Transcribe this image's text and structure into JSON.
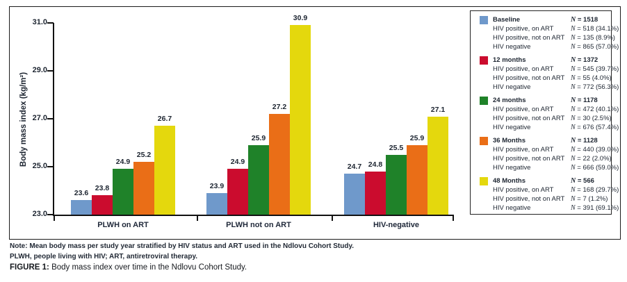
{
  "figure": {
    "note_line1": "Note: Mean body mass per study year stratified by HIV status and ART used in the Ndlovu Cohort Study.",
    "note_line2": "PLWH, people living with HIV; ART, antiretroviral therapy.",
    "caption_label": "FIGURE 1:",
    "caption_text": " Body mass index over time in the Ndlovu Cohort Study."
  },
  "chart_data": {
    "type": "bar",
    "title": "",
    "ylabel": "Body mass index (kg/m²)",
    "xlabel": "",
    "ylim": [
      23.0,
      31.0
    ],
    "ytick_labels": [
      "23.0",
      "25.0",
      "27.0",
      "29.0",
      "31.0"
    ],
    "grid": false,
    "legend_position": "right",
    "categories": [
      "PLWH on ART",
      "PLWH not on ART",
      "HIV-negative"
    ],
    "series": [
      {
        "name": "Baseline",
        "color": "#6f99cb",
        "values": [
          23.6,
          23.9,
          24.7
        ]
      },
      {
        "name": "12 months",
        "color": "#cb0c2e",
        "values": [
          23.8,
          24.9,
          24.8
        ]
      },
      {
        "name": "24 months",
        "color": "#1f8229",
        "values": [
          24.9,
          25.9,
          25.5
        ]
      },
      {
        "name": "36 Months",
        "color": "#ea6e17",
        "values": [
          25.2,
          27.2,
          25.9
        ]
      },
      {
        "name": "48 Months",
        "color": "#e4d80d",
        "values": [
          26.7,
          30.9,
          27.1
        ]
      }
    ]
  },
  "legend": {
    "groups": [
      {
        "name": "Baseline",
        "color": "#6f99cb",
        "n": "N = 1518",
        "rows": [
          {
            "label": "HIV positive, on ART",
            "n": "N = 518 (34.1%)"
          },
          {
            "label": "HIV positive, not on ART",
            "n": "N = 135 (8.9%)"
          },
          {
            "label": "HIV negative",
            "n": "N = 865 (57.0%)"
          }
        ]
      },
      {
        "name": "12 months",
        "color": "#cb0c2e",
        "n": "N = 1372",
        "rows": [
          {
            "label": "HIV positive, on ART",
            "n": "N = 545 (39.7%)"
          },
          {
            "label": "HIV positive, not on ART",
            "n": "N = 55 (4.0%)"
          },
          {
            "label": "HIV negative",
            "n": "N = 772 (56.3%)"
          }
        ]
      },
      {
        "name": "24 months",
        "color": "#1f8229",
        "n": "N = 1178",
        "rows": [
          {
            "label": "HIV positive, on ART",
            "n": "N = 472 (40.1%)"
          },
          {
            "label": "HIV positive, not on ART",
            "n": "N = 30 (2.5%)"
          },
          {
            "label": "HIV negative",
            "n": "N = 676 (57.4%)"
          }
        ]
      },
      {
        "name": "36 Months",
        "color": "#ea6e17",
        "n": "N = 1128",
        "rows": [
          {
            "label": "HIV positive, on ART",
            "n": "N = 440 (39.0%)"
          },
          {
            "label": "HIV positive, not on ART",
            "n": "N = 22 (2.0%)"
          },
          {
            "label": "HIV negative",
            "n": "N = 666 (59.0%)"
          }
        ]
      },
      {
        "name": "48 Months",
        "color": "#e4d80d",
        "n": "N = 566",
        "rows": [
          {
            "label": "HIV positive, on ART",
            "n": "N = 168 (29.7%)"
          },
          {
            "label": "HIV positive, not on ART",
            "n": "N = 7 (1.2%)"
          },
          {
            "label": "HIV negative",
            "n": "N = 391 (69.1%)"
          }
        ]
      }
    ]
  }
}
